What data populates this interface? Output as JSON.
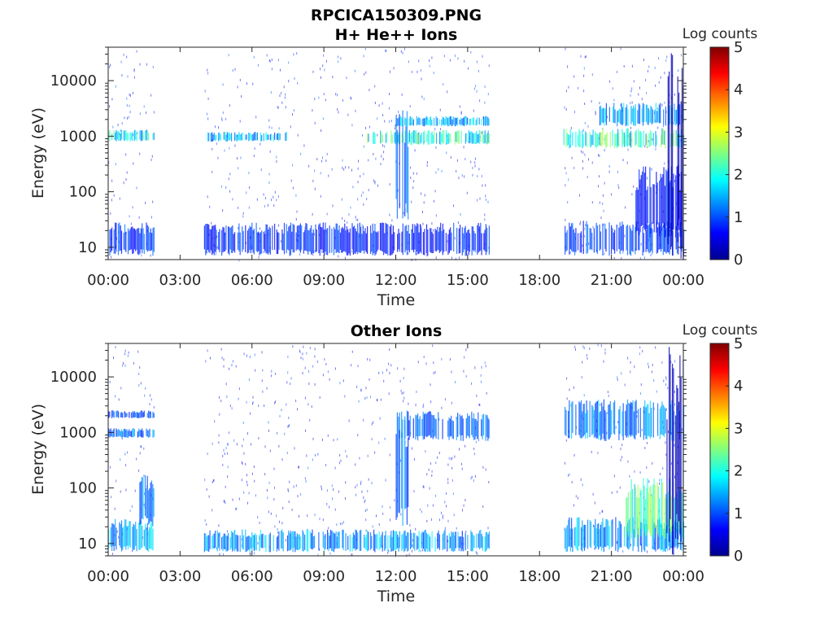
{
  "figure": {
    "title_line1": "RPCICA150309.PNG"
  },
  "colormap": [
    "#00008f",
    "#0000ff",
    "#0080ff",
    "#00ffff",
    "#80ff80",
    "#ffff00",
    "#ff8000",
    "#ff0000",
    "#800000"
  ],
  "chart_data": [
    {
      "type": "heatmap",
      "title": "H+ He++ Ions",
      "xlabel": "Time",
      "ylabel": "Energy (eV)",
      "x_ticks": [
        "00:00",
        "03:00",
        "06:00",
        "09:00",
        "12:00",
        "15:00",
        "18:00",
        "21:00",
        "00:00"
      ],
      "x_range_hours": [
        0,
        24
      ],
      "y_scale": "log",
      "y_range": [
        6,
        40000
      ],
      "y_ticks": [
        {
          "value": 10,
          "label": "10"
        },
        {
          "value": 100,
          "label": "100"
        },
        {
          "value": 1000,
          "label": "1000"
        },
        {
          "value": 10000,
          "label": "10000"
        }
      ],
      "colorbar": {
        "label": "Log counts",
        "range": [
          0,
          5
        ],
        "ticks": [
          "0",
          "1",
          "2",
          "3",
          "4",
          "5"
        ]
      },
      "data_gaps_hours": [
        [
          1.9,
          4.0
        ],
        [
          15.9,
          19.0
        ]
      ],
      "bands": [
        {
          "start": 0.0,
          "end": 1.9,
          "e_low": 7,
          "e_high": 28,
          "level": 1.0
        },
        {
          "start": 4.0,
          "end": 15.9,
          "e_low": 7,
          "e_high": 28,
          "level": 0.9
        },
        {
          "start": 19.0,
          "end": 24.0,
          "e_low": 7,
          "e_high": 30,
          "level": 1.0
        },
        {
          "start": 0.0,
          "end": 1.9,
          "e_low": 800,
          "e_high": 1300,
          "level": 2.0
        },
        {
          "start": 4.0,
          "end": 7.5,
          "e_low": 800,
          "e_high": 1200,
          "level": 1.7
        },
        {
          "start": 10.8,
          "end": 15.9,
          "e_low": 700,
          "e_high": 1300,
          "level": 2.2
        },
        {
          "start": 12.0,
          "end": 15.9,
          "e_low": 1500,
          "e_high": 2300,
          "level": 1.6
        },
        {
          "start": 19.0,
          "end": 24.0,
          "e_low": 600,
          "e_high": 1400,
          "level": 2.3
        },
        {
          "start": 20.5,
          "end": 24.0,
          "e_low": 1500,
          "e_high": 4000,
          "level": 1.6
        },
        {
          "start": 22.0,
          "end": 24.0,
          "e_low": 15,
          "e_high": 300,
          "level": 0.8
        },
        {
          "start": 23.3,
          "end": 24.0,
          "e_low": 6,
          "e_high": 35000,
          "level": 0.2
        },
        {
          "start": 12.0,
          "end": 12.5,
          "e_low": 30,
          "e_high": 3000,
          "level": 1.2
        }
      ]
    },
    {
      "type": "heatmap",
      "title": "Other Ions",
      "xlabel": "Time",
      "ylabel": "Energy (eV)",
      "x_ticks": [
        "00:00",
        "03:00",
        "06:00",
        "09:00",
        "12:00",
        "15:00",
        "18:00",
        "21:00",
        "00:00"
      ],
      "x_range_hours": [
        0,
        24
      ],
      "y_scale": "log",
      "y_range": [
        6,
        40000
      ],
      "y_ticks": [
        {
          "value": 10,
          "label": "10"
        },
        {
          "value": 100,
          "label": "100"
        },
        {
          "value": 1000,
          "label": "1000"
        },
        {
          "value": 10000,
          "label": "10000"
        }
      ],
      "colorbar": {
        "label": "Log counts",
        "range": [
          0,
          5
        ],
        "ticks": [
          "0",
          "1",
          "2",
          "3",
          "4",
          "5"
        ]
      },
      "data_gaps_hours": [
        [
          1.9,
          4.0
        ],
        [
          15.9,
          19.0
        ]
      ],
      "bands": [
        {
          "start": 0.0,
          "end": 1.9,
          "e_low": 7,
          "e_high": 28,
          "level": 1.6
        },
        {
          "start": 4.0,
          "end": 15.9,
          "e_low": 7,
          "e_high": 18,
          "level": 1.5
        },
        {
          "start": 19.0,
          "end": 24.0,
          "e_low": 7,
          "e_high": 30,
          "level": 1.5
        },
        {
          "start": 0.0,
          "end": 1.9,
          "e_low": 800,
          "e_high": 1200,
          "level": 1.2
        },
        {
          "start": 0.0,
          "end": 1.9,
          "e_low": 1800,
          "e_high": 2500,
          "level": 1.0
        },
        {
          "start": 12.0,
          "end": 15.9,
          "e_low": 700,
          "e_high": 2500,
          "level": 1.2
        },
        {
          "start": 19.0,
          "end": 24.0,
          "e_low": 700,
          "e_high": 4000,
          "level": 1.4
        },
        {
          "start": 21.5,
          "end": 24.0,
          "e_low": 12,
          "e_high": 150,
          "level": 2.3
        },
        {
          "start": 23.3,
          "end": 24.0,
          "e_low": 6,
          "e_high": 35000,
          "level": 0.3
        },
        {
          "start": 1.3,
          "end": 1.9,
          "e_low": 20,
          "e_high": 200,
          "level": 1.3
        },
        {
          "start": 12.0,
          "end": 12.5,
          "e_low": 20,
          "e_high": 3000,
          "level": 1.2
        }
      ]
    }
  ]
}
